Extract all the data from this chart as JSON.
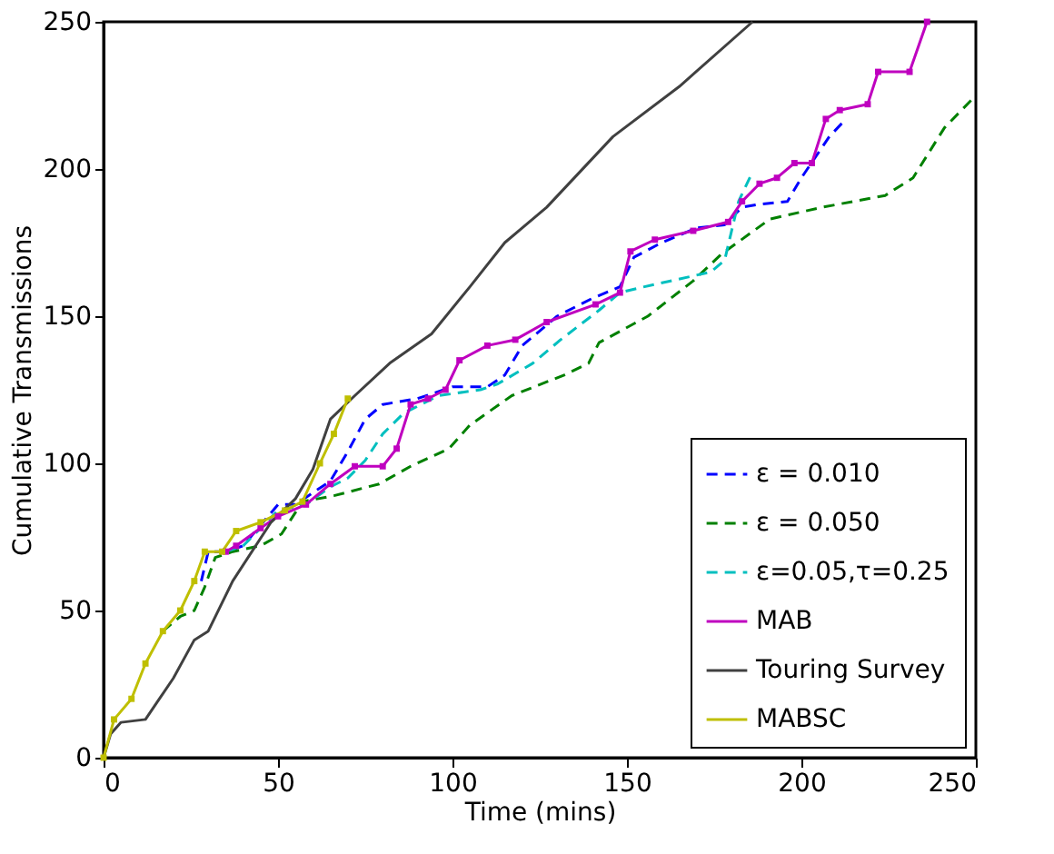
{
  "chart_data": {
    "type": "line",
    "xlabel": "Time (mins)",
    "ylabel": "Cumulative Transmissions",
    "xlim": [
      0,
      250
    ],
    "ylim": [
      0,
      250
    ],
    "xticks": [
      0,
      50,
      100,
      150,
      200,
      250
    ],
    "yticks": [
      0,
      50,
      100,
      150,
      200,
      250
    ],
    "grid": false,
    "legend": "bottom right",
    "series": [
      {
        "name": "ε = 0.010",
        "color": "#0000ff",
        "line_style": "dashed",
        "marker": "none",
        "x": [
          28,
          30,
          35,
          40,
          50,
          55,
          60,
          65,
          70,
          75,
          80,
          90,
          100,
          110,
          115,
          120,
          130,
          140,
          148,
          152,
          160,
          170,
          178,
          183,
          188,
          196,
          200,
          208,
          212
        ],
        "values": [
          60,
          70,
          70,
          72,
          86,
          86,
          90,
          94,
          104,
          115,
          120,
          122,
          126,
          126,
          130,
          140,
          150,
          156,
          160,
          170,
          175,
          180,
          181,
          187,
          188,
          189,
          197,
          211,
          216
        ]
      },
      {
        "name": "ε = 0.050",
        "color": "#008000",
        "line_style": "dashed",
        "marker": "none",
        "x": [
          17,
          22,
          26,
          29,
          32,
          37,
          45,
          51,
          57,
          66,
          79,
          88,
          99,
          105,
          117,
          132,
          139,
          142,
          156,
          169,
          177,
          191,
          206,
          224,
          232,
          241,
          250
        ],
        "values": [
          43,
          48,
          50,
          58,
          68,
          70,
          72,
          76,
          87,
          89,
          93,
          99,
          105,
          113,
          123,
          130,
          134,
          141,
          150,
          162,
          171,
          183,
          187,
          191,
          197,
          214,
          225
        ]
      },
      {
        "name": "ε=0.05,τ=0.25",
        "color": "#00bfbf",
        "line_style": "dashed",
        "marker": "none",
        "x": [
          35,
          40,
          50,
          58,
          65,
          70,
          75,
          80,
          86,
          96,
          108,
          113,
          123,
          131,
          142,
          148,
          155,
          174,
          178,
          182,
          186
        ],
        "values": [
          70,
          72,
          84,
          86,
          92,
          95,
          101,
          110,
          117,
          123,
          125,
          127,
          134,
          142,
          152,
          158,
          160,
          165,
          169,
          189,
          199
        ]
      },
      {
        "name": "MAB",
        "color": "#bf00bf",
        "line_style": "solid",
        "marker": "square",
        "x": [
          35,
          38,
          45,
          50,
          58,
          65,
          72,
          80,
          84,
          88,
          93,
          98,
          102,
          110,
          118,
          127,
          141,
          148,
          151,
          158,
          169,
          179,
          183,
          188,
          193,
          198,
          203,
          207,
          211,
          219,
          222,
          231,
          236
        ],
        "values": [
          70,
          72,
          78,
          82,
          86,
          93,
          99,
          99,
          105,
          120,
          122,
          125,
          135,
          140,
          142,
          148,
          154,
          158,
          172,
          176,
          179,
          182,
          189,
          195,
          197,
          202,
          202,
          217,
          220,
          222,
          233,
          233,
          250
        ]
      },
      {
        "name": "Touring Survey",
        "color": "#404040",
        "line_style": "solid",
        "marker": "none",
        "x": [
          0,
          2,
          5,
          12,
          16,
          20,
          26,
          30,
          37,
          48,
          55,
          60,
          65,
          72,
          82,
          94,
          105,
          115,
          127,
          146,
          165,
          186
        ],
        "values": [
          0,
          8,
          12,
          13,
          20,
          27,
          40,
          43,
          60,
          80,
          88,
          98,
          115,
          123,
          134,
          144,
          160,
          175,
          187,
          211,
          228,
          250
        ]
      },
      {
        "name": "MABSC",
        "color": "#bfbf00",
        "line_style": "solid",
        "marker": "square",
        "x": [
          0,
          3,
          8,
          12,
          17,
          22,
          26,
          29,
          34,
          38,
          45,
          52,
          57,
          62,
          66,
          70
        ],
        "values": [
          0,
          13,
          20,
          32,
          43,
          50,
          60,
          70,
          70,
          77,
          80,
          84,
          87,
          100,
          110,
          122
        ]
      }
    ]
  }
}
